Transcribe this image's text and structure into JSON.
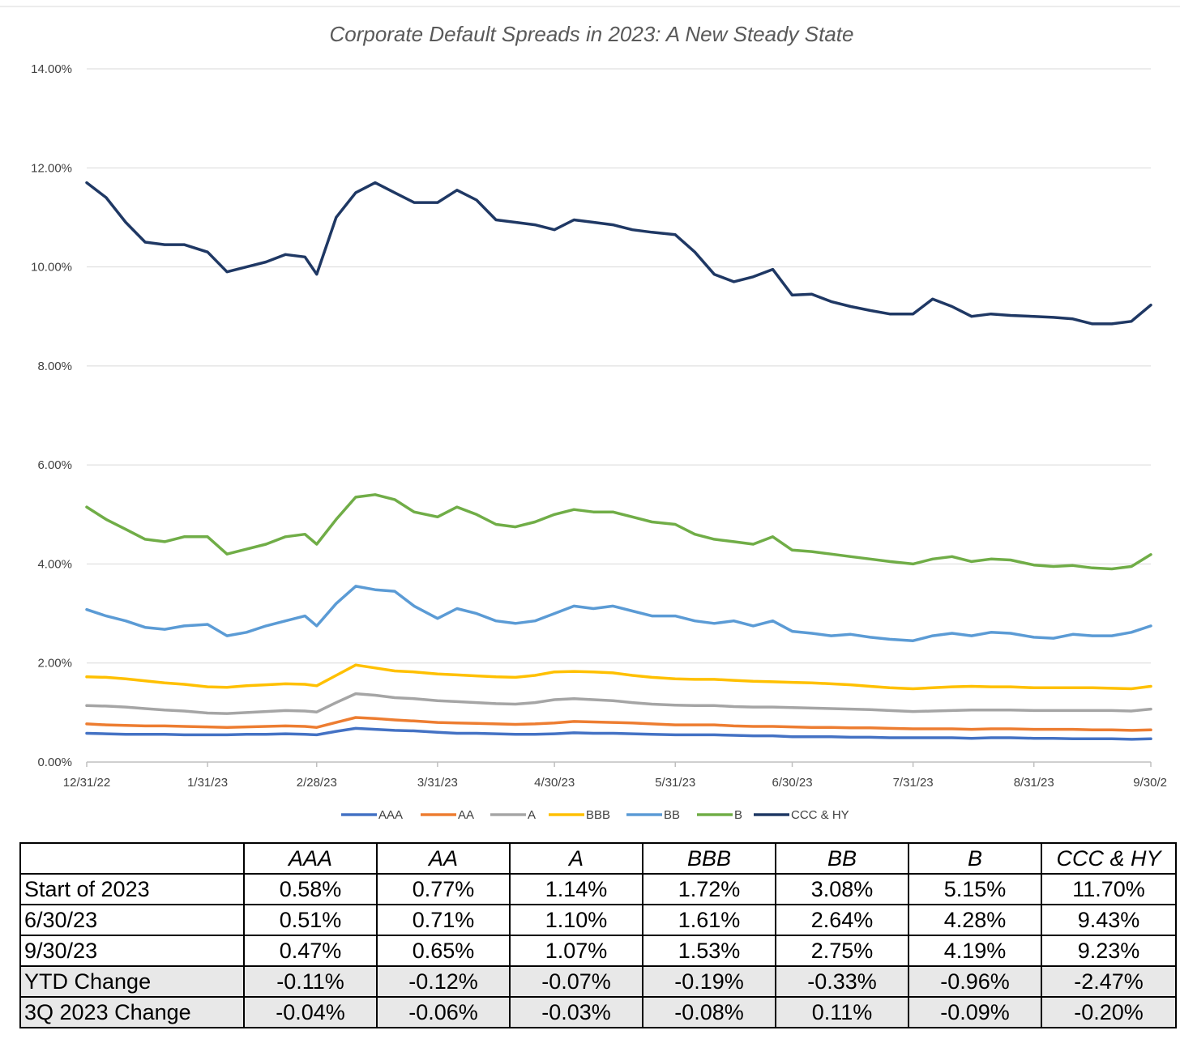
{
  "chart_data": {
    "type": "line",
    "title": "Corporate Default Spreads in 2023: A New Steady State",
    "xlabel": "",
    "ylabel": "",
    "ylim": [
      0,
      14
    ],
    "yticks": [
      "0.00%",
      "2.00%",
      "4.00%",
      "6.00%",
      "8.00%",
      "10.00%",
      "12.00%",
      "14.00%"
    ],
    "xticks": [
      "12/31/22",
      "1/31/23",
      "2/28/23",
      "3/31/23",
      "4/30/23",
      "5/31/23",
      "6/30/23",
      "7/31/23",
      "8/31/23",
      "9/30/2"
    ],
    "xlim": [
      "2022-12-31",
      "2023-09-30"
    ],
    "grid": "horizontal",
    "legend_position": "bottom",
    "x": [
      "2022-12-31",
      "2023-01-05",
      "2023-01-10",
      "2023-01-15",
      "2023-01-20",
      "2023-01-25",
      "2023-01-31",
      "2023-02-05",
      "2023-02-10",
      "2023-02-15",
      "2023-02-20",
      "2023-02-25",
      "2023-02-28",
      "2023-03-05",
      "2023-03-10",
      "2023-03-15",
      "2023-03-20",
      "2023-03-25",
      "2023-03-31",
      "2023-04-05",
      "2023-04-10",
      "2023-04-15",
      "2023-04-20",
      "2023-04-25",
      "2023-04-30",
      "2023-05-05",
      "2023-05-10",
      "2023-05-15",
      "2023-05-20",
      "2023-05-25",
      "2023-05-31",
      "2023-06-05",
      "2023-06-10",
      "2023-06-15",
      "2023-06-20",
      "2023-06-25",
      "2023-06-30",
      "2023-07-05",
      "2023-07-10",
      "2023-07-15",
      "2023-07-20",
      "2023-07-25",
      "2023-07-31",
      "2023-08-05",
      "2023-08-10",
      "2023-08-15",
      "2023-08-20",
      "2023-08-25",
      "2023-08-31",
      "2023-09-05",
      "2023-09-10",
      "2023-09-15",
      "2023-09-20",
      "2023-09-25",
      "2023-09-30"
    ],
    "series": [
      {
        "name": "AAA",
        "color": "#4472C4",
        "values": [
          0.58,
          0.57,
          0.56,
          0.56,
          0.56,
          0.55,
          0.55,
          0.55,
          0.56,
          0.56,
          0.57,
          0.56,
          0.55,
          0.62,
          0.68,
          0.66,
          0.64,
          0.63,
          0.6,
          0.58,
          0.58,
          0.57,
          0.56,
          0.56,
          0.57,
          0.59,
          0.58,
          0.58,
          0.57,
          0.56,
          0.55,
          0.55,
          0.55,
          0.54,
          0.53,
          0.53,
          0.51,
          0.51,
          0.51,
          0.5,
          0.5,
          0.49,
          0.49,
          0.49,
          0.49,
          0.48,
          0.49,
          0.49,
          0.48,
          0.48,
          0.47,
          0.47,
          0.47,
          0.46,
          0.47
        ]
      },
      {
        "name": "AA",
        "color": "#ED7D31",
        "values": [
          0.77,
          0.75,
          0.74,
          0.73,
          0.73,
          0.72,
          0.71,
          0.7,
          0.71,
          0.72,
          0.73,
          0.72,
          0.7,
          0.8,
          0.9,
          0.88,
          0.85,
          0.83,
          0.8,
          0.79,
          0.78,
          0.77,
          0.76,
          0.77,
          0.79,
          0.82,
          0.81,
          0.8,
          0.79,
          0.77,
          0.75,
          0.75,
          0.75,
          0.73,
          0.72,
          0.72,
          0.71,
          0.7,
          0.7,
          0.69,
          0.69,
          0.68,
          0.67,
          0.67,
          0.67,
          0.66,
          0.67,
          0.67,
          0.66,
          0.66,
          0.66,
          0.65,
          0.65,
          0.64,
          0.65
        ]
      },
      {
        "name": "A",
        "color": "#A5A5A5",
        "values": [
          1.14,
          1.13,
          1.11,
          1.08,
          1.05,
          1.03,
          0.99,
          0.98,
          1.0,
          1.02,
          1.04,
          1.03,
          1.01,
          1.2,
          1.38,
          1.35,
          1.3,
          1.28,
          1.24,
          1.22,
          1.2,
          1.18,
          1.17,
          1.2,
          1.26,
          1.28,
          1.26,
          1.24,
          1.2,
          1.17,
          1.15,
          1.14,
          1.14,
          1.12,
          1.11,
          1.11,
          1.1,
          1.09,
          1.08,
          1.07,
          1.06,
          1.04,
          1.02,
          1.03,
          1.04,
          1.05,
          1.05,
          1.05,
          1.04,
          1.04,
          1.04,
          1.04,
          1.04,
          1.03,
          1.07
        ]
      },
      {
        "name": "BBB",
        "color": "#FFC000",
        "values": [
          1.72,
          1.71,
          1.68,
          1.64,
          1.6,
          1.57,
          1.52,
          1.51,
          1.54,
          1.56,
          1.58,
          1.57,
          1.54,
          1.75,
          1.96,
          1.9,
          1.84,
          1.82,
          1.78,
          1.76,
          1.74,
          1.72,
          1.71,
          1.75,
          1.82,
          1.83,
          1.82,
          1.8,
          1.75,
          1.71,
          1.68,
          1.67,
          1.67,
          1.65,
          1.63,
          1.62,
          1.61,
          1.6,
          1.58,
          1.56,
          1.53,
          1.5,
          1.48,
          1.5,
          1.52,
          1.53,
          1.52,
          1.52,
          1.5,
          1.5,
          1.5,
          1.5,
          1.49,
          1.48,
          1.53
        ]
      },
      {
        "name": "BB",
        "color": "#5B9BD5",
        "values": [
          3.08,
          2.95,
          2.85,
          2.72,
          2.68,
          2.75,
          2.78,
          2.55,
          2.62,
          2.75,
          2.85,
          2.95,
          2.75,
          3.2,
          3.55,
          3.48,
          3.45,
          3.15,
          2.9,
          3.1,
          3.0,
          2.85,
          2.8,
          2.85,
          3.0,
          3.15,
          3.1,
          3.15,
          3.05,
          2.95,
          2.95,
          2.85,
          2.8,
          2.85,
          2.75,
          2.85,
          2.64,
          2.6,
          2.55,
          2.58,
          2.52,
          2.48,
          2.45,
          2.55,
          2.6,
          2.55,
          2.62,
          2.6,
          2.52,
          2.5,
          2.58,
          2.55,
          2.55,
          2.62,
          2.75
        ]
      },
      {
        "name": "B",
        "color": "#70AD47",
        "values": [
          5.15,
          4.9,
          4.7,
          4.5,
          4.45,
          4.55,
          4.55,
          4.2,
          4.3,
          4.4,
          4.55,
          4.6,
          4.4,
          4.9,
          5.35,
          5.4,
          5.3,
          5.05,
          4.95,
          5.15,
          5.0,
          4.8,
          4.75,
          4.85,
          5.0,
          5.1,
          5.05,
          5.05,
          4.95,
          4.85,
          4.8,
          4.6,
          4.5,
          4.45,
          4.4,
          4.55,
          4.28,
          4.25,
          4.2,
          4.15,
          4.1,
          4.05,
          4.0,
          4.1,
          4.15,
          4.05,
          4.1,
          4.08,
          3.98,
          3.95,
          3.97,
          3.92,
          3.9,
          3.95,
          4.19
        ]
      },
      {
        "name": "CCC & HY",
        "color": "#1F3864",
        "values": [
          11.7,
          11.4,
          10.9,
          10.5,
          10.45,
          10.45,
          10.3,
          9.9,
          10.0,
          10.1,
          10.25,
          10.2,
          9.85,
          11.0,
          11.5,
          11.7,
          11.5,
          11.3,
          11.3,
          11.55,
          11.35,
          10.95,
          10.9,
          10.85,
          10.75,
          10.95,
          10.9,
          10.85,
          10.75,
          10.7,
          10.65,
          10.3,
          9.85,
          9.7,
          9.8,
          9.95,
          9.43,
          9.45,
          9.3,
          9.2,
          9.12,
          9.05,
          9.05,
          9.35,
          9.2,
          9.0,
          9.05,
          9.02,
          9.0,
          8.98,
          8.95,
          8.85,
          8.85,
          8.9,
          9.23
        ]
      }
    ]
  },
  "table": {
    "headers": [
      "",
      "AAA",
      "AA",
      "A",
      "BBB",
      "BB",
      "B",
      "CCC & HY"
    ],
    "rows": [
      {
        "label": "Start of 2023",
        "values": [
          "0.58%",
          "0.77%",
          "1.14%",
          "1.72%",
          "3.08%",
          "5.15%",
          "11.70%"
        ],
        "shaded": false
      },
      {
        "label": "6/30/23",
        "values": [
          "0.51%",
          "0.71%",
          "1.10%",
          "1.61%",
          "2.64%",
          "4.28%",
          "9.43%"
        ],
        "shaded": false
      },
      {
        "label": "9/30/23",
        "values": [
          "0.47%",
          "0.65%",
          "1.07%",
          "1.53%",
          "2.75%",
          "4.19%",
          "9.23%"
        ],
        "shaded": false
      },
      {
        "label": "YTD Change",
        "values": [
          "-0.11%",
          "-0.12%",
          "-0.07%",
          "-0.19%",
          "-0.33%",
          "-0.96%",
          "-2.47%"
        ],
        "shaded": true
      },
      {
        "label": "3Q 2023 Change",
        "values": [
          "-0.04%",
          "-0.06%",
          "-0.03%",
          "-0.08%",
          "0.11%",
          "-0.09%",
          "-0.20%"
        ],
        "shaded": true
      }
    ]
  }
}
